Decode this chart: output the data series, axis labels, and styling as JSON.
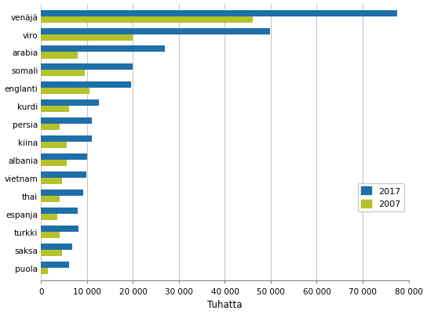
{
  "categories": [
    "venäjä",
    "viro",
    "arabia",
    "somali",
    "englanti",
    "kurdi",
    "persia",
    "kiina",
    "albania",
    "vietnam",
    "thai",
    "espanja",
    "turkki",
    "saksa",
    "puola"
  ],
  "values_2017": [
    77500,
    49800,
    27000,
    20000,
    19500,
    12500,
    11000,
    11000,
    10000,
    9800,
    9200,
    8000,
    8200,
    6800,
    6000
  ],
  "values_2007": [
    46000,
    20000,
    8000,
    9500,
    10500,
    6000,
    4000,
    5500,
    5500,
    4500,
    4000,
    3500,
    4000,
    4500,
    1500
  ],
  "color_2017": "#1f6fa8",
  "color_2007": "#b5c22a",
  "xlabel": "Tuhatta",
  "xlim": [
    0,
    80000
  ],
  "xticks": [
    0,
    10000,
    20000,
    30000,
    40000,
    50000,
    60000,
    70000,
    80000
  ],
  "xticklabels": [
    "0",
    "10 000",
    "20 000",
    "30 000",
    "40 000",
    "50 000",
    "60 000",
    "70 000",
    "80 000"
  ],
  "legend_2017": "2017",
  "legend_2007": "2007",
  "background_color": "#ffffff",
  "grid_color": "#c8c8c8",
  "figsize": [
    5.44,
    4.02
  ],
  "dpi": 100
}
